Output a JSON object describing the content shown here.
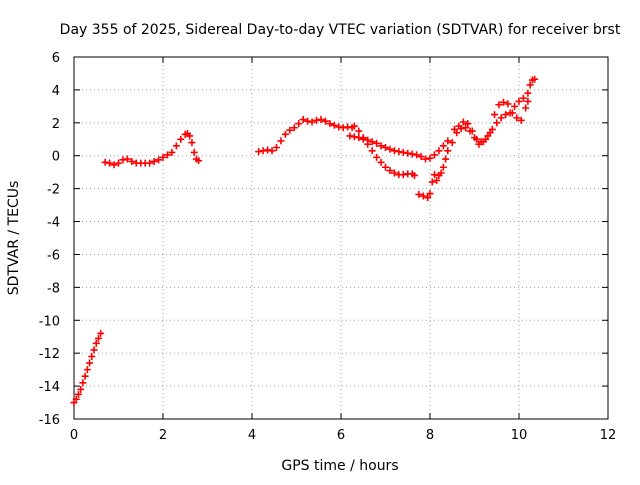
{
  "chart_data": {
    "type": "scatter",
    "title": "Day 355 of 2025, Sidereal Day-to-day VTEC variation (SDTVAR) for receiver brst",
    "xlabel": "GPS time / hours",
    "ylabel": "SDTVAR / TECUs",
    "xlim": [
      0,
      12
    ],
    "ylim": [
      -16,
      6
    ],
    "xticks": [
      0,
      2,
      4,
      6,
      8,
      10,
      12
    ],
    "yticks": [
      -16,
      -14,
      -12,
      -10,
      -8,
      -6,
      -4,
      -2,
      0,
      2,
      4,
      6
    ],
    "grid": true,
    "marker_color": "#ff0000",
    "series": [
      {
        "values": [
          [
            0.0,
            -15.0
          ],
          [
            0.05,
            -14.8
          ],
          [
            0.1,
            -14.5
          ],
          [
            0.15,
            -14.2
          ],
          [
            0.2,
            -13.8
          ],
          [
            0.25,
            -13.4
          ],
          [
            0.3,
            -13.0
          ],
          [
            0.35,
            -12.6
          ],
          [
            0.4,
            -12.2
          ],
          [
            0.45,
            -11.8
          ],
          [
            0.5,
            -11.4
          ],
          [
            0.55,
            -11.1
          ],
          [
            0.6,
            -10.8
          ],
          [
            0.7,
            -0.4
          ],
          [
            0.8,
            -0.45
          ],
          [
            0.9,
            -0.55
          ],
          [
            1.0,
            -0.45
          ],
          [
            1.1,
            -0.25
          ],
          [
            1.2,
            -0.2
          ],
          [
            1.3,
            -0.35
          ],
          [
            1.4,
            -0.45
          ],
          [
            1.5,
            -0.45
          ],
          [
            1.6,
            -0.45
          ],
          [
            1.7,
            -0.45
          ],
          [
            1.8,
            -0.35
          ],
          [
            1.9,
            -0.25
          ],
          [
            2.0,
            -0.1
          ],
          [
            2.1,
            0.05
          ],
          [
            2.2,
            0.2
          ],
          [
            2.3,
            0.6
          ],
          [
            2.4,
            1.0
          ],
          [
            2.5,
            1.3
          ],
          [
            2.55,
            1.35
          ],
          [
            2.6,
            1.2
          ],
          [
            2.65,
            0.8
          ],
          [
            2.7,
            0.2
          ],
          [
            2.75,
            -0.2
          ],
          [
            2.8,
            -0.3
          ],
          [
            4.15,
            0.25
          ],
          [
            4.25,
            0.3
          ],
          [
            4.35,
            0.35
          ],
          [
            4.45,
            0.3
          ],
          [
            4.55,
            0.5
          ],
          [
            4.65,
            0.9
          ],
          [
            4.75,
            1.3
          ],
          [
            4.85,
            1.55
          ],
          [
            4.95,
            1.7
          ],
          [
            5.05,
            1.95
          ],
          [
            5.15,
            2.2
          ],
          [
            5.25,
            2.1
          ],
          [
            5.35,
            2.05
          ],
          [
            5.45,
            2.15
          ],
          [
            5.55,
            2.2
          ],
          [
            5.65,
            2.1
          ],
          [
            5.75,
            1.95
          ],
          [
            5.85,
            1.85
          ],
          [
            5.95,
            1.75
          ],
          [
            6.05,
            1.7
          ],
          [
            6.15,
            1.75
          ],
          [
            6.25,
            1.7
          ],
          [
            6.2,
            1.2
          ],
          [
            6.3,
            1.15
          ],
          [
            6.4,
            1.1
          ],
          [
            6.5,
            1.0
          ],
          [
            6.6,
            0.95
          ],
          [
            6.7,
            0.85
          ],
          [
            6.8,
            0.75
          ],
          [
            6.9,
            0.6
          ],
          [
            7.0,
            0.5
          ],
          [
            7.1,
            0.4
          ],
          [
            7.2,
            0.3
          ],
          [
            7.3,
            0.25
          ],
          [
            7.4,
            0.2
          ],
          [
            7.5,
            0.15
          ],
          [
            7.6,
            0.1
          ],
          [
            7.7,
            0.05
          ],
          [
            7.8,
            -0.05
          ],
          [
            7.9,
            -0.2
          ],
          [
            8.0,
            -0.15
          ],
          [
            8.1,
            0.05
          ],
          [
            8.2,
            0.3
          ],
          [
            8.3,
            0.6
          ],
          [
            8.4,
            0.9
          ],
          [
            6.3,
            1.8
          ],
          [
            6.4,
            1.5
          ],
          [
            6.5,
            1.1
          ],
          [
            6.6,
            0.7
          ],
          [
            6.7,
            0.3
          ],
          [
            6.8,
            -0.1
          ],
          [
            6.9,
            -0.4
          ],
          [
            7.0,
            -0.7
          ],
          [
            7.1,
            -0.9
          ],
          [
            7.2,
            -1.05
          ],
          [
            7.3,
            -1.15
          ],
          [
            7.4,
            -1.15
          ],
          [
            7.5,
            -1.1
          ],
          [
            7.6,
            -1.1
          ],
          [
            7.65,
            -1.2
          ],
          [
            7.75,
            -2.35
          ],
          [
            7.85,
            -2.45
          ],
          [
            7.95,
            -2.55
          ],
          [
            8.0,
            -2.3
          ],
          [
            8.05,
            -1.6
          ],
          [
            8.1,
            -1.15
          ],
          [
            8.15,
            -1.5
          ],
          [
            8.2,
            -1.2
          ],
          [
            8.25,
            -1.05
          ],
          [
            8.3,
            -0.7
          ],
          [
            8.35,
            -0.2
          ],
          [
            8.4,
            0.3
          ],
          [
            8.5,
            0.8
          ],
          [
            8.6,
            1.4
          ],
          [
            8.7,
            1.65
          ],
          [
            8.8,
            1.7
          ],
          [
            8.9,
            1.5
          ],
          [
            9.0,
            1.1
          ],
          [
            9.1,
            0.7
          ],
          [
            9.2,
            0.85
          ],
          [
            9.3,
            1.2
          ],
          [
            9.4,
            1.6
          ],
          [
            9.5,
            2.0
          ],
          [
            9.6,
            2.3
          ],
          [
            9.7,
            2.5
          ],
          [
            9.8,
            2.6
          ],
          [
            9.9,
            3.0
          ],
          [
            10.0,
            3.3
          ],
          [
            10.1,
            3.5
          ],
          [
            10.2,
            3.8
          ],
          [
            10.25,
            4.3
          ],
          [
            10.3,
            4.6
          ],
          [
            10.35,
            4.65
          ],
          [
            8.55,
            1.6
          ],
          [
            8.65,
            1.8
          ],
          [
            8.75,
            2.05
          ],
          [
            8.85,
            1.95
          ],
          [
            8.95,
            1.5
          ],
          [
            9.05,
            1.0
          ],
          [
            9.15,
            0.85
          ],
          [
            9.25,
            1.0
          ],
          [
            9.35,
            1.4
          ],
          [
            9.45,
            2.5
          ],
          [
            9.55,
            3.1
          ],
          [
            9.65,
            3.25
          ],
          [
            9.75,
            3.15
          ],
          [
            9.85,
            2.6
          ],
          [
            9.95,
            2.3
          ],
          [
            10.05,
            2.15
          ],
          [
            10.15,
            2.9
          ],
          [
            10.2,
            3.3
          ]
        ]
      }
    ]
  }
}
